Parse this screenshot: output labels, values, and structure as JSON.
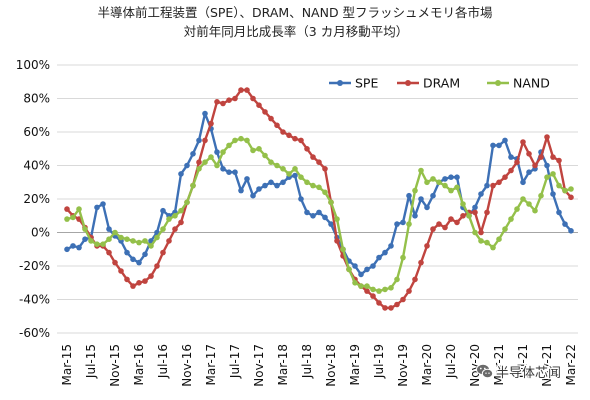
{
  "chart_data": {
    "type": "line",
    "title": "半導体前工程装置（SPE）、DRAM、NAND 型フラッシュメモリ各市場",
    "subtitle": "対前年同月比成長率（3 カ月移動平均）",
    "xlabel": "",
    "ylabel": "",
    "x_tick_labels": [
      "Mar-15",
      "Jul-15",
      "Nov-15",
      "Mar-16",
      "Jul-16",
      "Nov-16",
      "Mar-17",
      "Jul-17",
      "Nov-17",
      "Mar-18",
      "Jul-18",
      "Nov-18",
      "Mar-19",
      "Jul-19",
      "Nov-19",
      "Mar-20",
      "Jul-20",
      "Nov-20",
      "Mar-21",
      "Jul-21",
      "Nov-21",
      "Mar-22"
    ],
    "y_tick_labels": [
      "100%",
      "80%",
      "60%",
      "40%",
      "20%",
      "0%",
      "-20%",
      "-40%",
      "-60%"
    ],
    "ylim": [
      -60,
      100
    ],
    "grid": true,
    "legend": "top-right",
    "series": [
      {
        "name": "SPE",
        "color": "#3d70b5",
        "values": [
          -10,
          -8,
          -9,
          -4,
          -3,
          15,
          17,
          2,
          -2,
          -5,
          -12,
          -16,
          -18,
          -13,
          -5,
          0,
          13,
          10,
          12,
          35,
          40,
          47,
          55,
          71,
          62,
          48,
          38,
          36,
          36,
          25,
          32,
          22,
          26,
          28,
          30,
          28,
          30,
          33,
          34,
          20,
          12,
          10,
          12,
          9,
          5,
          -3,
          -10,
          -17,
          -20,
          -25,
          -22,
          -20,
          -15,
          -12,
          -8,
          5,
          6,
          22,
          10,
          20,
          15,
          22,
          30,
          32,
          33,
          33,
          15,
          10,
          15,
          23,
          28,
          52,
          52,
          55,
          45,
          44,
          30,
          36,
          38,
          48,
          40,
          23,
          12,
          5,
          1
        ]
      },
      {
        "name": "DRAM",
        "color": "#c0443f",
        "values": [
          14,
          10,
          8,
          3,
          -3,
          -8,
          -8,
          -12,
          -18,
          -23,
          -28,
          -32,
          -30,
          -29,
          -26,
          -20,
          -12,
          -5,
          2,
          6,
          18,
          28,
          42,
          55,
          65,
          78,
          77,
          79,
          80,
          85,
          85,
          80,
          76,
          72,
          68,
          64,
          60,
          58,
          56,
          55,
          50,
          45,
          42,
          38,
          18,
          -5,
          -14,
          -22,
          -28,
          -32,
          -35,
          -38,
          -42,
          -45,
          -45,
          -43,
          -40,
          -35,
          -28,
          -18,
          -8,
          2,
          5,
          3,
          8,
          6,
          10,
          12,
          12,
          0,
          12,
          28,
          30,
          33,
          37,
          42,
          54,
          47,
          40,
          45,
          57,
          45,
          43,
          25,
          21
        ]
      },
      {
        "name": "NAND",
        "color": "#94c04a",
        "values": [
          8,
          9,
          14,
          2,
          -5,
          -7,
          -7,
          -4,
          0,
          -3,
          -4,
          -5,
          -6,
          -5,
          -8,
          -3,
          2,
          8,
          10,
          13,
          18,
          28,
          38,
          42,
          45,
          40,
          48,
          52,
          55,
          56,
          55,
          49,
          50,
          46,
          42,
          40,
          38,
          35,
          38,
          33,
          30,
          28,
          27,
          24,
          18,
          8,
          -10,
          -22,
          -30,
          -32,
          -32,
          -34,
          -35,
          -34,
          -33,
          -28,
          -15,
          5,
          25,
          37,
          30,
          32,
          30,
          28,
          25,
          27,
          17,
          10,
          0,
          -5,
          -6,
          -9,
          -4,
          2,
          8,
          14,
          20,
          17,
          13,
          22,
          33,
          35,
          28,
          25,
          26
        ]
      }
    ]
  },
  "watermark": {
    "icon": "wechat-icon",
    "text": "半导体芯闻"
  }
}
